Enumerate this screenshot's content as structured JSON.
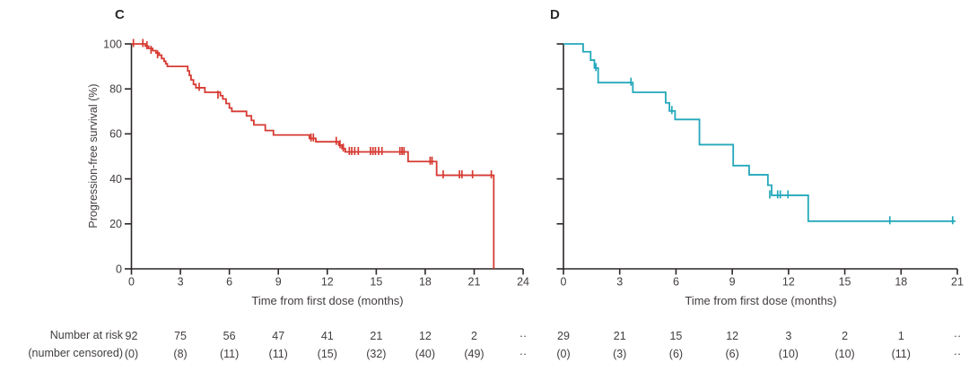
{
  "figure": {
    "background": "#ffffff",
    "axis_color": "#2b2728",
    "text_color": "#423d3d",
    "at_risk_label": "Number at risk",
    "censored_label": "(number censored)"
  },
  "chart_data": [
    {
      "type": "line",
      "subtype": "kaplan-meier-step",
      "panel_label": "C",
      "color": "#d63a32",
      "xlabel": "Time from first dose (months)",
      "ylabel": "Progression-free survival (%)",
      "xlim": [
        0,
        24
      ],
      "ylim": [
        0,
        100
      ],
      "x_ticks": [
        0,
        3,
        6,
        9,
        12,
        15,
        18,
        21,
        24
      ],
      "y_ticks": [
        100,
        80,
        60,
        40,
        20,
        0
      ],
      "y_tick_labels_visible": true,
      "grid": false,
      "start": [
        0,
        100
      ],
      "end_month": 22.2,
      "steps": [
        [
          0.85,
          99
        ],
        [
          1.05,
          98
        ],
        [
          1.3,
          97
        ],
        [
          1.5,
          96
        ],
        [
          1.7,
          95
        ],
        [
          1.85,
          93.5
        ],
        [
          2.0,
          92.3
        ],
        [
          2.1,
          91.2
        ],
        [
          2.2,
          90
        ],
        [
          3.45,
          88
        ],
        [
          3.55,
          86
        ],
        [
          3.65,
          84
        ],
        [
          3.8,
          82
        ],
        [
          3.95,
          80.5
        ],
        [
          4.5,
          78.5
        ],
        [
          5.45,
          77
        ],
        [
          5.6,
          75.5
        ],
        [
          5.8,
          73.5
        ],
        [
          6.0,
          71.5
        ],
        [
          6.15,
          70
        ],
        [
          7.05,
          68
        ],
        [
          7.35,
          66
        ],
        [
          7.5,
          64
        ],
        [
          8.2,
          61.5
        ],
        [
          8.7,
          59.5
        ],
        [
          10.9,
          58
        ],
        [
          11.3,
          56.5
        ],
        [
          12.7,
          55
        ],
        [
          12.9,
          53.5
        ],
        [
          13.1,
          52
        ],
        [
          16.95,
          47.7
        ],
        [
          18.7,
          41.6
        ],
        [
          22.2,
          0
        ]
      ],
      "censor_marks": [
        [
          0.12,
          100
        ],
        [
          0.7,
          100
        ],
        [
          0.95,
          99
        ],
        [
          1.2,
          97
        ],
        [
          1.6,
          95
        ],
        [
          4.15,
          80.5
        ],
        [
          5.3,
          77
        ],
        [
          11.0,
          58
        ],
        [
          11.15,
          58
        ],
        [
          12.55,
          56.5
        ],
        [
          12.78,
          55
        ],
        [
          12.98,
          53.5
        ],
        [
          13.35,
          52
        ],
        [
          13.5,
          52
        ],
        [
          13.68,
          52
        ],
        [
          13.9,
          52
        ],
        [
          14.65,
          52
        ],
        [
          14.8,
          52
        ],
        [
          14.95,
          52
        ],
        [
          15.15,
          52
        ],
        [
          15.35,
          52
        ],
        [
          16.45,
          52
        ],
        [
          16.58,
          52
        ],
        [
          16.7,
          52
        ],
        [
          18.3,
          47.7
        ],
        [
          18.42,
          47.7
        ],
        [
          19.1,
          41.6
        ],
        [
          20.1,
          41.6
        ],
        [
          20.25,
          41.6
        ],
        [
          20.9,
          41.6
        ],
        [
          22.05,
          41.6
        ]
      ],
      "number_at_risk": [
        "92",
        "75",
        "56",
        "47",
        "41",
        "21",
        "12",
        "2",
        "··"
      ],
      "number_censored": [
        "(0)",
        "(8)",
        "(11)",
        "(11)",
        "(15)",
        "(32)",
        "(40)",
        "(49)",
        "··"
      ]
    },
    {
      "type": "line",
      "subtype": "kaplan-meier-step",
      "panel_label": "D",
      "color": "#23a8bb",
      "xlabel": "Time from first dose (months)",
      "ylabel": "",
      "xlim": [
        0,
        21
      ],
      "ylim": [
        0,
        100
      ],
      "x_ticks": [
        0,
        3,
        6,
        9,
        12,
        15,
        18,
        21
      ],
      "y_ticks": [
        100,
        80,
        60,
        40,
        20,
        0
      ],
      "y_tick_labels_visible": false,
      "grid": false,
      "start": [
        0,
        100
      ],
      "end_month": 20.9,
      "steps": [
        [
          1.05,
          96.5
        ],
        [
          1.45,
          92.8
        ],
        [
          1.65,
          89.3
        ],
        [
          1.85,
          82.8
        ],
        [
          3.7,
          78.5
        ],
        [
          5.45,
          73.8
        ],
        [
          5.65,
          70.2
        ],
        [
          5.95,
          66.4
        ],
        [
          7.25,
          55.2
        ],
        [
          9.05,
          45.9
        ],
        [
          9.9,
          41.8
        ],
        [
          10.9,
          37.2
        ],
        [
          11.1,
          32.7
        ],
        [
          13.05,
          21.2
        ]
      ],
      "censor_marks": [
        [
          1.73,
          89.3
        ],
        [
          3.6,
          82.8
        ],
        [
          5.78,
          70.2
        ],
        [
          11.0,
          32.7
        ],
        [
          11.42,
          32.7
        ],
        [
          11.56,
          32.7
        ],
        [
          11.97,
          32.7
        ],
        [
          17.4,
          21.2
        ],
        [
          20.75,
          21.2
        ]
      ],
      "number_at_risk": [
        "29",
        "21",
        "15",
        "12",
        "3",
        "2",
        "1",
        "··"
      ],
      "number_censored": [
        "(0)",
        "(3)",
        "(6)",
        "(6)",
        "(10)",
        "(10)",
        "(11)",
        "··"
      ]
    }
  ]
}
